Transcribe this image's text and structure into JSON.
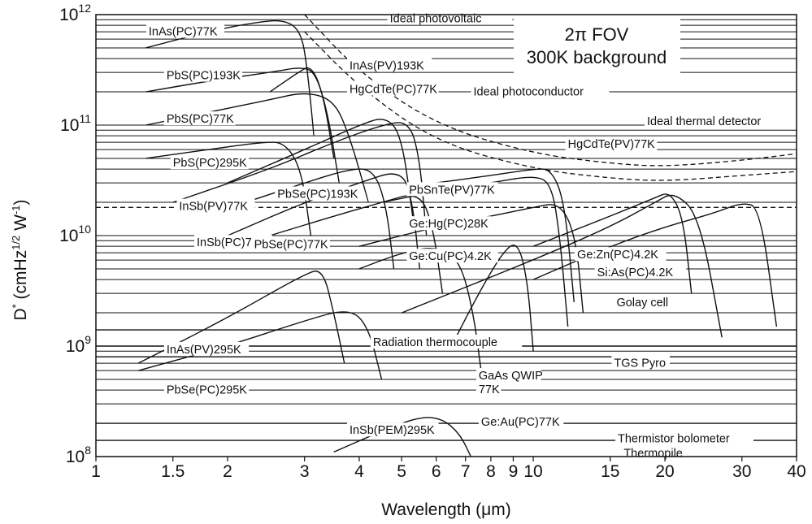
{
  "chart_data": {
    "type": "line",
    "title": "",
    "xlabel": "Wavelength (μm)",
    "ylabel": "D* (cmHz^1/2 W^-1)",
    "ylabel_parts": {
      "base": "D",
      "sup1": "*",
      "mid1": " (cmHz",
      "sup2": "1/2",
      "mid2": " W",
      "sup3": "-1",
      "end": ")"
    },
    "x_scale": "log",
    "y_scale": "log",
    "xlim": [
      1,
      40
    ],
    "ylim": [
      100000000,
      1000000000000
    ],
    "x_ticks": [
      1,
      1.5,
      2,
      3,
      4,
      5,
      6,
      7,
      8,
      9,
      10,
      15,
      20,
      30,
      40
    ],
    "x_tick_labels": [
      "1",
      "1.5",
      "2",
      "3",
      "4",
      "5",
      "6",
      "7",
      "8",
      "9",
      "10",
      "15",
      "20",
      "30",
      "40"
    ],
    "y_ticks": [
      100000000,
      1000000000,
      10000000000,
      100000000000,
      1000000000000
    ],
    "y_tick_labels": [
      {
        "base": "10",
        "exp": "8"
      },
      {
        "base": "10",
        "exp": "9"
      },
      {
        "base": "10",
        "exp": "10"
      },
      {
        "base": "10",
        "exp": "11"
      },
      {
        "base": "10",
        "exp": "12"
      }
    ],
    "grid": true,
    "annotation_box": {
      "line1": "2π FOV",
      "line2": "300K background"
    },
    "series": [
      {
        "name": "InAs(PC)77K",
        "label": "InAs(PC)77K",
        "x": [
          1.3,
          1.8,
          2.3,
          2.7,
          2.95,
          3.05,
          3.15
        ],
        "y": [
          500000000000,
          700000000000,
          850000000000,
          900000000000,
          700000000000,
          300000000000,
          80000000000
        ]
      },
      {
        "name": "PbS(PC)193K",
        "label": "PbS(PC)193K",
        "x": [
          1.3,
          1.8,
          2.5,
          3.0,
          3.2,
          3.4,
          3.6
        ],
        "y": [
          200000000000,
          250000000000,
          300000000000,
          340000000000,
          280000000000,
          120000000000,
          30000000000
        ]
      },
      {
        "name": "InAs(PV)193K",
        "label": "InAs(PV)193K",
        "x": [
          2.5,
          2.9,
          3.1,
          3.3,
          3.5
        ],
        "y": [
          200000000000,
          300000000000,
          350000000000,
          200000000000,
          50000000000
        ]
      },
      {
        "name": "PbS(PC)77K",
        "label": "PbS(PC)77K",
        "x": [
          1.3,
          1.8,
          2.5,
          3.0,
          3.5,
          3.8,
          4.2
        ],
        "y": [
          100000000000,
          130000000000,
          170000000000,
          200000000000,
          170000000000,
          80000000000,
          20000000000
        ]
      },
      {
        "name": "HgCdTe(PC)77K",
        "label": "HgCdTe(PC)77K",
        "x": [
          2.0,
          3.0,
          4.0,
          4.6,
          5.0,
          5.3
        ],
        "y": [
          30000000000,
          60000000000,
          100000000000,
          120000000000,
          80000000000,
          15000000000
        ]
      },
      {
        "name": "PbS(PC)295K",
        "label": "PbS(PC)295K",
        "x": [
          1.3,
          1.8,
          2.4,
          2.7,
          2.95,
          3.1
        ],
        "y": [
          50000000000,
          60000000000,
          70000000000,
          70000000000,
          40000000000,
          10000000000
        ]
      },
      {
        "name": "InSb(PV)77K",
        "label": "InSb(PV)77K",
        "x": [
          1.5,
          2.5,
          3.5,
          4.5,
          5.2,
          5.5,
          5.7
        ],
        "y": [
          20000000000,
          40000000000,
          70000000000,
          100000000000,
          110000000000,
          50000000000,
          10000000000
        ]
      },
      {
        "name": "PbSe(PC)193K",
        "label": "PbSe(PC)193K",
        "x": [
          2.2,
          3.0,
          3.8,
          4.3,
          4.6,
          4.8
        ],
        "y": [
          20000000000,
          30000000000,
          40000000000,
          40000000000,
          20000000000,
          5000000000
        ]
      },
      {
        "name": "InSb(PC)77K",
        "label": "InSb(PC)77K",
        "x": [
          2.0,
          3.0,
          4.0,
          5.0,
          5.3,
          5.5
        ],
        "y": [
          10000000000,
          20000000000,
          30000000000,
          40000000000,
          20000000000,
          5000000000
        ]
      },
      {
        "name": "PbSe(PC)77K",
        "label": "PbSe(PC)77K",
        "x": [
          2.5,
          3.5,
          4.5,
          5.5,
          5.9,
          6.2
        ],
        "y": [
          10000000000,
          15000000000,
          20000000000,
          25000000000,
          12000000000,
          3000000000
        ]
      },
      {
        "name": "PbSnTe(PV)77K",
        "label": "PbSnTe(PV)77K",
        "x": [
          4.5,
          6.0,
          8.0,
          10.0,
          11.0,
          11.5,
          12.0
        ],
        "y": [
          20000000000,
          25000000000,
          30000000000,
          35000000000,
          30000000000,
          10000000000,
          1500000000
        ]
      },
      {
        "name": "HgCdTe(PV)77K",
        "label": "HgCdTe(PV)77K",
        "x": [
          6.0,
          8.0,
          10.0,
          11.0,
          11.8,
          12.4
        ],
        "y": [
          30000000000,
          35000000000,
          40000000000,
          40000000000,
          20000000000,
          2500000000
        ]
      },
      {
        "name": "Ge:Hg(PC)28K",
        "label": "Ge:Hg(PC)28K",
        "x": [
          4.0,
          6.0,
          8.0,
          10.0,
          11.5,
          12.5,
          13.0
        ],
        "y": [
          8000000000,
          12000000000,
          15000000000,
          18000000000,
          20000000000,
          10000000000,
          2000000000
        ]
      },
      {
        "name": "Ge:Cu(PC)4.2K",
        "label": "Ge:Cu(PC)4.2K",
        "x": [
          5.0,
          10.0,
          15.0,
          19.0,
          21.0,
          24.0,
          27.0
        ],
        "y": [
          2000000000,
          6000000000,
          12000000000,
          20000000000,
          25000000000,
          15000000000,
          1200000000
        ]
      },
      {
        "name": "Ge:Zn(PC)4.2K",
        "label": "Ge:Zn(PC)4.2K",
        "x": [
          10.0,
          15.0,
          20.0,
          26.0,
          30.0,
          33.0,
          36.0
        ],
        "y": [
          4000000000,
          8000000000,
          12000000000,
          16000000000,
          20000000000,
          18000000000,
          1500000000
        ]
      },
      {
        "name": "Si:As(PC)4.2K",
        "label": "Si:As(PC)4.2K",
        "x": [
          10.0,
          15.0,
          19.0,
          20.5,
          22.0,
          23.0
        ],
        "y": [
          8000000000,
          15000000000,
          22000000000,
          25000000000,
          15000000000,
          3000000000
        ]
      },
      {
        "name": "InAs(PV)295K",
        "label": "InAs(PV)295K",
        "x": [
          1.25,
          2.0,
          3.0,
          3.3,
          3.5,
          3.7
        ],
        "y": [
          700000000,
          1800000000,
          4500000000,
          5000000000,
          2000000000,
          700000000
        ]
      },
      {
        "name": "PbSe(PC)295K",
        "label": "PbSe(PC)295K",
        "x": [
          1.25,
          2.0,
          3.0,
          3.8,
          4.2,
          4.5
        ],
        "y": [
          600000000,
          1000000000,
          1700000000,
          2200000000,
          1500000000,
          500000000
        ]
      },
      {
        "name": "GaAs QWIP 77K",
        "label": "GaAs QWIP\n77K",
        "x": [
          6.5,
          7.5,
          8.5,
          9.2,
          9.7,
          10.0
        ],
        "y": [
          1000000000,
          3000000000,
          7000000000,
          9000000000,
          4000000000,
          900000000
        ]
      },
      {
        "name": "Ge:Au(PC)77K",
        "label": "Ge:Au(PC)77K",
        "x": [
          4.0,
          5.0,
          6.0,
          6.8,
          7.3,
          7.6
        ],
        "y": [
          5000000000,
          7000000000,
          8000000000,
          6000000000,
          2000000000,
          600000000
        ]
      },
      {
        "name": "InSb(PEM)295K",
        "label": "InSb(PEM)295K",
        "x": [
          3.5,
          4.5,
          5.5,
          6.2,
          6.8,
          7.2
        ],
        "y": [
          110000000,
          170000000,
          230000000,
          220000000,
          160000000,
          100000000
        ]
      },
      {
        "name": "Golay cell",
        "label": "Golay cell",
        "x": [
          1,
          40
        ],
        "y": [
          1400000000,
          1400000000
        ]
      },
      {
        "name": "Radiation thermocouple",
        "label": "Radiation thermocouple",
        "x": [
          1,
          40
        ],
        "y": [
          1000000000,
          1000000000
        ]
      },
      {
        "name": "TGS Pyro",
        "label": "TGS Pyro",
        "x": [
          1,
          40
        ],
        "y": [
          800000000,
          800000000
        ]
      },
      {
        "name": "Thermistor bolometer",
        "label": "Thermistor bolometer",
        "x": [
          1,
          40
        ],
        "y": [
          200000000,
          200000000
        ]
      },
      {
        "name": "Thermopile",
        "label": "Thermopile",
        "x": [
          1,
          40
        ],
        "y": [
          140000000,
          140000000
        ]
      },
      {
        "name": "Ideal photovoltaic",
        "label": "Ideal photovoltaic",
        "style": "dashed",
        "x": [
          3.0,
          4.0,
          6.0,
          10.0,
          15.0,
          20.0,
          30.0,
          40.0
        ],
        "y": [
          1000000000000,
          300000000000,
          100000000000,
          55000000000,
          45000000000,
          42000000000,
          48000000000,
          55000000000
        ]
      },
      {
        "name": "Ideal photoconductor",
        "label": "Ideal photoconductor",
        "style": "dashed",
        "x": [
          3.0,
          4.0,
          6.0,
          10.0,
          15.0,
          20.0,
          30.0,
          40.0
        ],
        "y": [
          700000000000,
          220000000000,
          70000000000,
          40000000000,
          33000000000,
          31000000000,
          35000000000,
          38000000000
        ]
      },
      {
        "name": "Ideal thermal detector",
        "label": "Ideal thermal detector",
        "style": "dashed",
        "x": [
          1,
          40
        ],
        "y": [
          18000000000,
          18000000000
        ]
      }
    ],
    "label_positions": {
      "InAs(PC)77K": [
        1.32,
        650000000000
      ],
      "PbS(PC)193K": [
        1.45,
        260000000000
      ],
      "InAs(PV)193K": [
        3.8,
        320000000000
      ],
      "PbS(PC)77K": [
        1.45,
        105000000000
      ],
      "HgCdTe(PC)77K": [
        3.8,
        195000000000
      ],
      "Ideal photoconductor": [
        7.3,
        185000000000
      ],
      "Ideal photovoltaic": [
        4.7,
        850000000000
      ],
      "Ideal thermal detector": [
        18.2,
        100000000000
      ],
      "PbS(PC)295K": [
        1.5,
        42000000000
      ],
      "HgCdTe(PV)77K": [
        12.0,
        62000000000
      ],
      "InSb(PV)77K": [
        1.55,
        17000000000
      ],
      "PbSe(PC)193K": [
        2.6,
        22000000000
      ],
      "PbSnTe(PV)77K": [
        5.2,
        24000000000
      ],
      "InSb(PC)77K": [
        1.7,
        8000000000
      ],
      "PbSe(PC)77K": [
        2.3,
        7700000000
      ],
      "Ge:Hg(PC)28K": [
        5.2,
        11800000000
      ],
      "Ge:Cu(PC)4.2K": [
        5.2,
        6000000000
      ],
      "Ge:Zn(PC)4.2K": [
        12.6,
        6200000000
      ],
      "Si:As(PC)4.2K": [
        14.0,
        4300000000
      ],
      "InAs(PV)295K": [
        1.45,
        860000000
      ],
      "PbSe(PC)295K": [
        1.45,
        370000000
      ],
      "Golay cell": [
        15.5,
        2300000000
      ],
      "Radiation thermocouple": [
        4.3,
        1000000000
      ],
      "TGS Pyro": [
        15.3,
        650000000
      ],
      "GaAs QWIP 77K": [
        7.5,
        500000000
      ],
      "Ge:Au(PC)77K": [
        7.6,
        190000000
      ],
      "InSb(PEM)295K": [
        3.8,
        160000000
      ],
      "Thermistor bolometer": [
        15.6,
        135000000
      ],
      "Thermopile": [
        16.1,
        99000000
      ]
    }
  }
}
